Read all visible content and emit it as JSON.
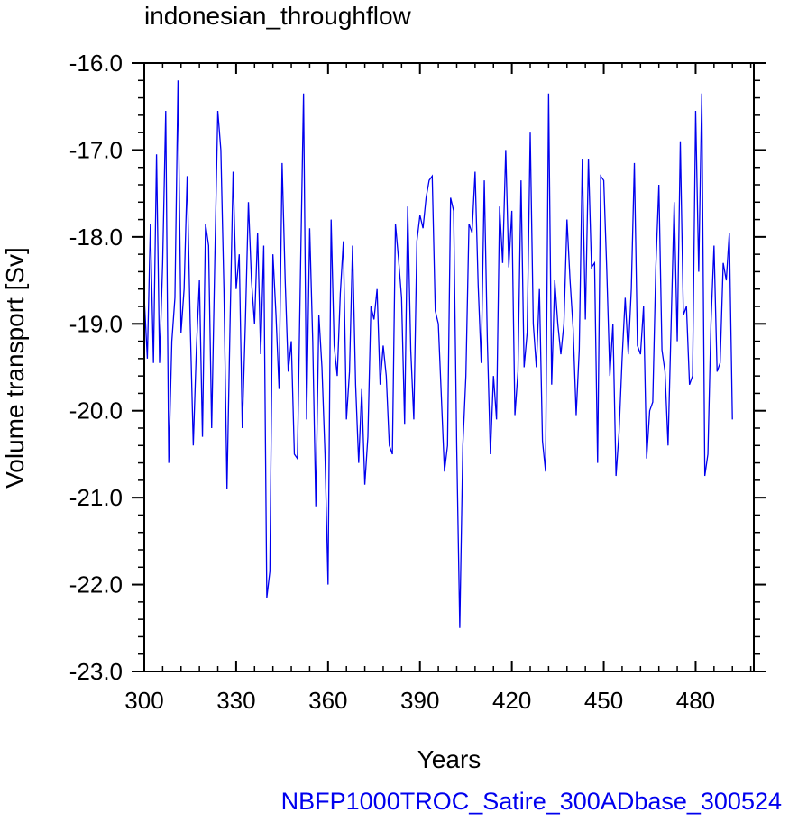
{
  "chart_data": {
    "type": "line",
    "title": "indonesian_throughflow",
    "xlabel": "Years",
    "ylabel": "Volume transport [Sv]",
    "footer": "NBFP1000TROC_Satire_300ADbase_300524",
    "xlim": [
      300,
      499
    ],
    "ylim": [
      -23.0,
      -16.0
    ],
    "x_ticks": [
      300,
      330,
      360,
      390,
      420,
      450,
      480
    ],
    "x_tick_labels": [
      "300",
      "330",
      "360",
      "390",
      "420",
      "450",
      "480"
    ],
    "y_ticks": [
      -16.0,
      -17.0,
      -18.0,
      -19.0,
      -20.0,
      -21.0,
      -22.0,
      -23.0
    ],
    "y_tick_labels": [
      "-16.0",
      "-17.0",
      "-18.0",
      "-19.0",
      "-20.0",
      "-21.0",
      "-22.0",
      "-23.0"
    ],
    "grid": false,
    "series": [
      {
        "color": "#0000ee",
        "x_start": 300,
        "x_step": 1,
        "values": [
          -18.7,
          -19.4,
          -17.85,
          -19.45,
          -17.05,
          -19.45,
          -18.3,
          -16.55,
          -20.6,
          -19.2,
          -18.7,
          -16.2,
          -19.1,
          -18.6,
          -17.3,
          -19.0,
          -20.4,
          -19.3,
          -18.5,
          -20.3,
          -17.85,
          -18.1,
          -20.2,
          -18.3,
          -16.55,
          -17.0,
          -18.6,
          -20.9,
          -19.0,
          -17.25,
          -18.6,
          -18.2,
          -20.2,
          -19.0,
          -17.6,
          -18.5,
          -19.0,
          -17.95,
          -19.35,
          -18.1,
          -22.15,
          -21.85,
          -18.2,
          -18.9,
          -19.75,
          -17.15,
          -18.5,
          -19.55,
          -19.2,
          -20.5,
          -20.55,
          -18.4,
          -16.35,
          -20.1,
          -17.9,
          -19.2,
          -21.1,
          -18.9,
          -19.5,
          -20.5,
          -22.0,
          -17.8,
          -19.25,
          -19.6,
          -18.65,
          -18.05,
          -20.1,
          -19.55,
          -18.1,
          -19.7,
          -20.6,
          -19.75,
          -20.85,
          -20.3,
          -18.8,
          -18.95,
          -18.6,
          -19.7,
          -19.25,
          -19.6,
          -20.4,
          -20.5,
          -17.85,
          -18.25,
          -18.7,
          -20.15,
          -17.65,
          -19.3,
          -20.1,
          -18.05,
          -17.75,
          -17.9,
          -17.55,
          -17.35,
          -17.3,
          -18.85,
          -19.0,
          -19.85,
          -20.7,
          -20.4,
          -17.55,
          -17.7,
          -20.4,
          -22.5,
          -20.4,
          -19.6,
          -17.85,
          -17.95,
          -17.25,
          -18.55,
          -19.45,
          -17.35,
          -19.2,
          -20.5,
          -19.6,
          -20.1,
          -17.65,
          -18.3,
          -17.0,
          -18.35,
          -17.7,
          -20.05,
          -19.55,
          -17.35,
          -19.5,
          -19.1,
          -16.8,
          -19.0,
          -19.5,
          -18.6,
          -20.35,
          -20.7,
          -16.35,
          -19.7,
          -18.5,
          -19.0,
          -19.35,
          -19.0,
          -17.8,
          -18.5,
          -19.05,
          -20.05,
          -19.3,
          -17.1,
          -18.95,
          -17.1,
          -18.35,
          -18.3,
          -20.6,
          -17.3,
          -17.35,
          -18.4,
          -19.6,
          -19.0,
          -20.75,
          -20.25,
          -19.4,
          -18.7,
          -19.35,
          -18.6,
          -17.15,
          -19.25,
          -19.35,
          -18.8,
          -20.55,
          -20.0,
          -19.9,
          -18.35,
          -17.4,
          -19.3,
          -19.55,
          -20.4,
          -19.0,
          -17.6,
          -19.2,
          -16.9,
          -18.9,
          -18.8,
          -19.7,
          -19.6,
          -16.55,
          -18.4,
          -16.35,
          -20.75,
          -20.5,
          -19.0,
          -18.1,
          -19.55,
          -19.45,
          -18.3,
          -18.5,
          -17.95,
          -20.1
        ]
      }
    ]
  }
}
